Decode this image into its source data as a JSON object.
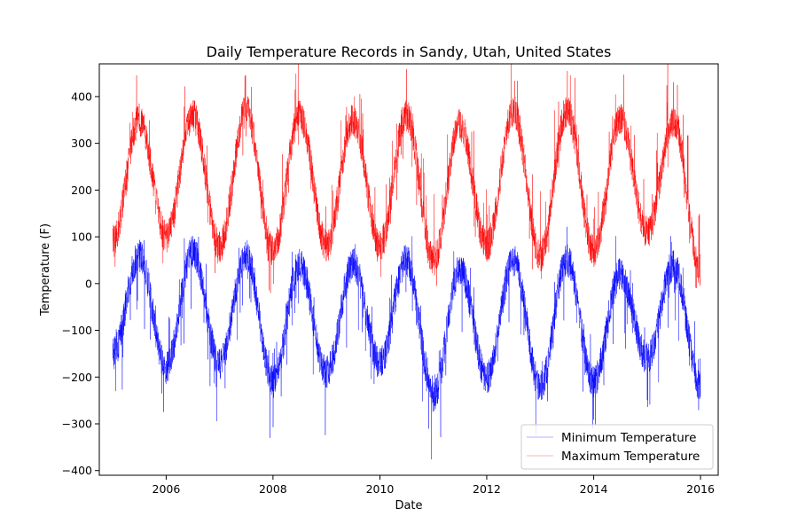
{
  "chart_data": {
    "type": "line",
    "title": "Daily Temperature Records in Sandy, Utah, United States",
    "xlabel": "Date",
    "ylabel": "Temperature (F)",
    "xlim": [
      "2004-10-01",
      "2016-05-01"
    ],
    "ylim": [
      -410,
      470
    ],
    "x_ticks": [
      "2006",
      "2008",
      "2010",
      "2012",
      "2014",
      "2016"
    ],
    "y_ticks": [
      "400",
      "300",
      "200",
      "100",
      "0",
      "−100",
      "−200",
      "−300",
      "−400"
    ],
    "grid": false,
    "legend_position": "bottom-right",
    "series": [
      {
        "name": "Minimum Temperature",
        "color": "#0000ff",
        "x": [
          "2005-01-01",
          "2005-07-01",
          "2006-01-01",
          "2006-07-01",
          "2007-01-01",
          "2007-07-01",
          "2008-01-01",
          "2008-07-01",
          "2009-01-01",
          "2009-07-01",
          "2010-01-01",
          "2010-07-01",
          "2011-01-01",
          "2011-07-01",
          "2012-01-01",
          "2012-07-01",
          "2013-01-01",
          "2013-07-01",
          "2014-01-01",
          "2014-07-01",
          "2015-01-01",
          "2015-07-01",
          "2016-01-01"
        ],
        "y": [
          -150,
          60,
          -180,
          70,
          -170,
          60,
          -210,
          40,
          -190,
          40,
          -170,
          50,
          -240,
          30,
          -200,
          50,
          -220,
          50,
          -210,
          20,
          -160,
          40,
          -220
        ]
      },
      {
        "name": "Maximum Temperature",
        "color": "#ff0000",
        "x": [
          "2005-01-01",
          "2005-07-01",
          "2006-01-01",
          "2006-07-01",
          "2007-01-01",
          "2007-07-01",
          "2008-01-01",
          "2008-07-01",
          "2009-01-01",
          "2009-07-01",
          "2010-01-01",
          "2010-07-01",
          "2011-01-01",
          "2011-07-01",
          "2012-01-01",
          "2012-07-01",
          "2013-01-01",
          "2013-07-01",
          "2014-01-01",
          "2014-07-01",
          "2015-01-01",
          "2015-07-01",
          "2016-01-01"
        ],
        "y": [
          90,
          350,
          100,
          360,
          80,
          370,
          70,
          360,
          80,
          350,
          80,
          360,
          50,
          340,
          80,
          370,
          60,
          370,
          70,
          350,
          110,
          350,
          30
        ]
      }
    ]
  }
}
